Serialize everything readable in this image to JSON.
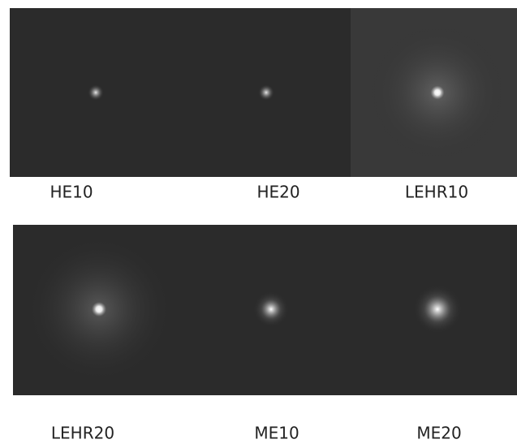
{
  "panels": [
    {
      "label": "HE10"
    },
    {
      "label": "HE20"
    },
    {
      "label": "LEHR10"
    },
    {
      "label": "LEHR20"
    },
    {
      "label": "ME10"
    },
    {
      "label": "ME20"
    }
  ]
}
